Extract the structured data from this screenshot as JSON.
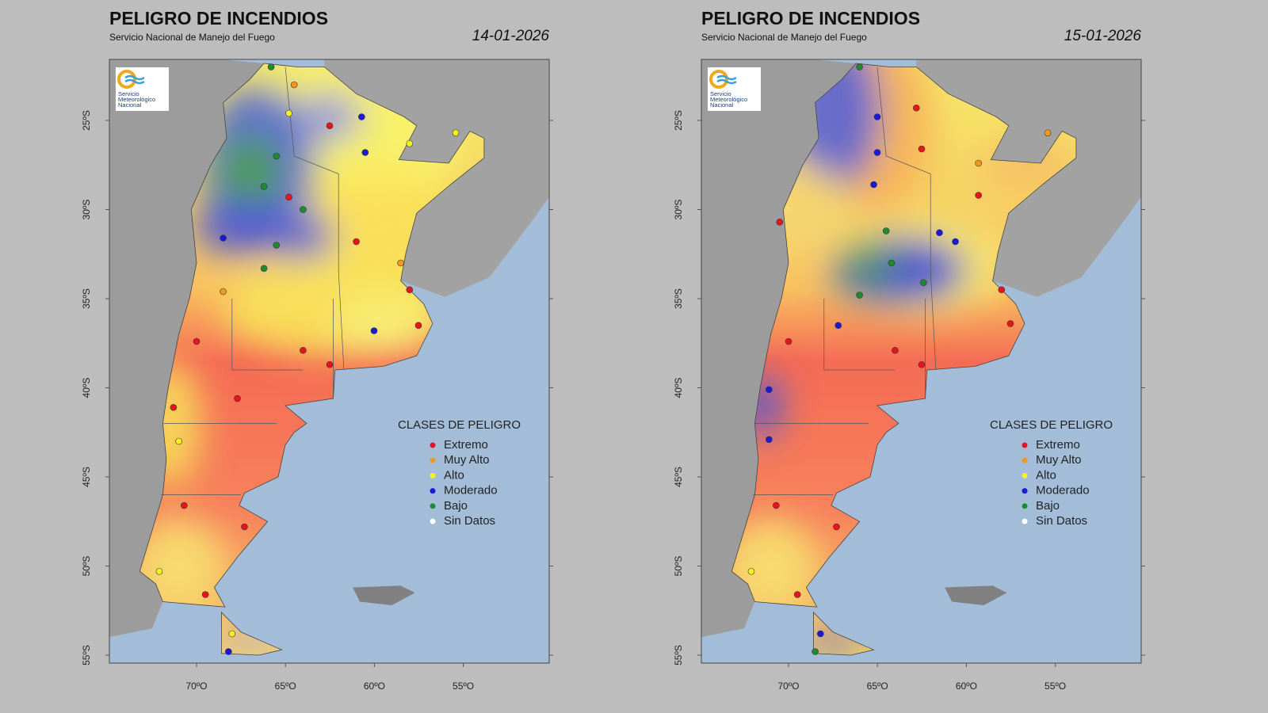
{
  "panels": [
    {
      "title": "PELIGRO DE INCENDIOS",
      "subtitle": "Servicio Nacional de Manejo del Fuego",
      "date": "14-01-2026",
      "logo": [
        "Servicio",
        "Meteorológico",
        "Nacional"
      ],
      "lat_labels": [
        "25ºS",
        "30ºS",
        "35ºS",
        "40ºS",
        "45ºS",
        "50ºS",
        "55ºS"
      ],
      "lon_labels": [
        "70ºO",
        "65ºO",
        "60ºO",
        "55ºO"
      ],
      "legend": {
        "title": "CLASES DE PELIGRO",
        "items": [
          {
            "label": "Extremo",
            "color": "#e8141b"
          },
          {
            "label": "Muy Alto",
            "color": "#f39a1e"
          },
          {
            "label": "Alto",
            "color": "#f5f21c"
          },
          {
            "label": "Moderado",
            "color": "#1a1ad8"
          },
          {
            "label": "Bajo",
            "color": "#1f8a2e"
          },
          {
            "label": "Sin Datos",
            "color": "#ffffff"
          }
        ]
      }
    },
    {
      "title": "PELIGRO DE INCENDIOS",
      "subtitle": "Servicio Nacional de Manejo del Fuego",
      "date": "15-01-2026",
      "logo": [
        "Servicio",
        "Meteorológico",
        "Nacional"
      ],
      "lat_labels": [
        "25ºS",
        "30ºS",
        "35ºS",
        "40ºS",
        "45ºS",
        "50ºS",
        "55ºS"
      ],
      "lon_labels": [
        "70ºO",
        "65ºO",
        "60ºO",
        "55ºO"
      ],
      "legend": {
        "title": "CLASES DE PELIGRO",
        "items": [
          {
            "label": "Extremo",
            "color": "#e8141b"
          },
          {
            "label": "Muy Alto",
            "color": "#f39a1e"
          },
          {
            "label": "Alto",
            "color": "#f5f21c"
          },
          {
            "label": "Moderado",
            "color": "#1a1ad8"
          },
          {
            "label": "Bajo",
            "color": "#1f8a2e"
          },
          {
            "label": "Sin Datos",
            "color": "#ffffff"
          }
        ]
      }
    }
  ]
}
